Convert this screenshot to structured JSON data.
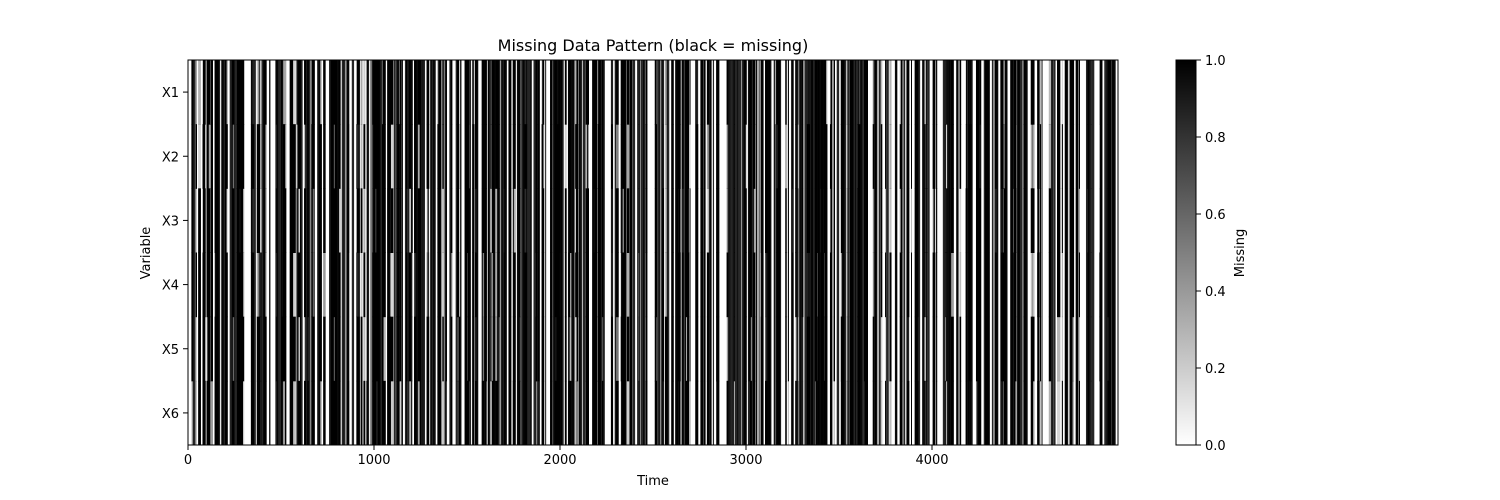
{
  "chart_data": {
    "type": "heatmap",
    "title": "Missing Data Pattern (black = missing)",
    "xlabel": "Time",
    "ylabel": "Variable",
    "rows": [
      "X1",
      "X2",
      "X3",
      "X4",
      "X5",
      "X6"
    ],
    "xlim": [
      0,
      5000
    ],
    "xticks": [
      "0",
      "1000",
      "2000",
      "3000",
      "4000"
    ],
    "xtick_values": [
      0,
      1000,
      2000,
      3000,
      4000
    ],
    "colormap": "gray_r",
    "vmin": 0.0,
    "vmax": 1.0,
    "colorbar": {
      "label": "Missing",
      "ticks": [
        "0.0",
        "0.2",
        "0.4",
        "0.6",
        "0.8",
        "1.0"
      ],
      "tick_values": [
        0.0,
        0.2,
        0.4,
        0.6,
        0.8,
        1.0
      ]
    },
    "interpolation": "smooth",
    "note_values": "binary missing indicator per time step (1 = missing, 0 = present); long vertical streaks indicate time points missing across most variables",
    "missing_streak_centers": [
      30,
      75,
      118,
      162,
      205,
      232,
      268,
      300,
      335,
      380,
      418,
      470,
      510,
      548,
      585,
      620,
      660,
      700,
      745,
      790,
      830,
      862,
      905,
      930,
      960,
      1010,
      1050,
      1090,
      1135,
      1180,
      1215,
      1255,
      1300,
      1345,
      1385,
      1420,
      1460,
      1505,
      1545,
      1590,
      1630,
      1665,
      1705,
      1745,
      1790,
      1830,
      1870,
      1900,
      1940,
      1985,
      2020,
      2060,
      2100,
      2140,
      2185,
      2220,
      2265,
      2300,
      2340,
      2380,
      2425,
      2470,
      2520,
      2565,
      2605,
      2650,
      2690,
      2730,
      2770,
      2810,
      2850,
      2895,
      2940,
      2985,
      3030,
      3080,
      3120,
      3165,
      3220,
      3265,
      3300,
      3335,
      3375,
      3420,
      3465,
      3510,
      3555,
      3600,
      3650,
      3700,
      3740,
      3785,
      3830,
      3880,
      3925,
      3970,
      4020,
      4065,
      4110,
      4155,
      4200,
      4250,
      4295,
      4340,
      4390,
      4440,
      4490,
      4535,
      4580,
      4625,
      4670,
      4715,
      4760,
      4805,
      4850,
      4895,
      4950
    ]
  }
}
